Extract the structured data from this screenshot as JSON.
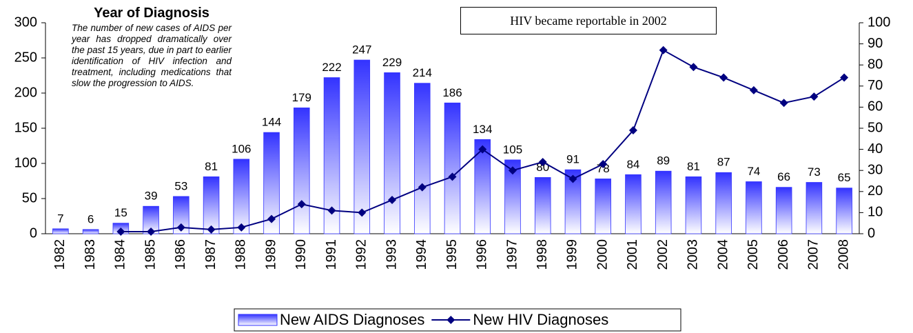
{
  "chart_data": {
    "type": "bar",
    "title": "Year of Diagnosis",
    "subtitle": "The number of new cases of AIDS per year has dropped dramatically over the past 15 years, due in part to earlier identification of HIV infection and treatment, including medications that slow the progression to AIDS.",
    "annotation": "HIV became reportable in 2002",
    "categories": [
      "1982",
      "1983",
      "1984",
      "1985",
      "1986",
      "1987",
      "1988",
      "1989",
      "1990",
      "1991",
      "1992",
      "1993",
      "1994",
      "1995",
      "1996",
      "1997",
      "1998",
      "1999",
      "2000",
      "2001",
      "2002",
      "2003",
      "2004",
      "2005",
      "2006",
      "2007",
      "2008"
    ],
    "series": [
      {
        "name": "New AIDS Diagnoses",
        "type": "bar",
        "color": "#3333ff",
        "values": [
          7,
          6,
          15,
          39,
          53,
          81,
          106,
          144,
          179,
          222,
          247,
          229,
          214,
          186,
          134,
          105,
          80,
          91,
          78,
          84,
          89,
          81,
          87,
          74,
          66,
          73,
          65
        ]
      },
      {
        "name": "New HIV Diagnoses",
        "type": "line",
        "axis": "y2",
        "color": "#000080",
        "values": [
          null,
          null,
          1,
          1,
          3,
          2,
          3,
          7,
          14,
          11,
          10,
          16,
          22,
          27,
          40,
          30,
          34,
          26,
          33,
          49,
          87,
          79,
          74,
          68,
          62,
          65,
          74
        ]
      }
    ],
    "ylim": [
      0,
      300
    ],
    "yticks": [
      0,
      50,
      100,
      150,
      200,
      250,
      300
    ],
    "y2lim": [
      0,
      100
    ],
    "y2ticks": [
      0,
      10,
      20,
      30,
      40,
      50,
      60,
      70,
      80,
      90,
      100
    ],
    "legend": "bottom"
  }
}
